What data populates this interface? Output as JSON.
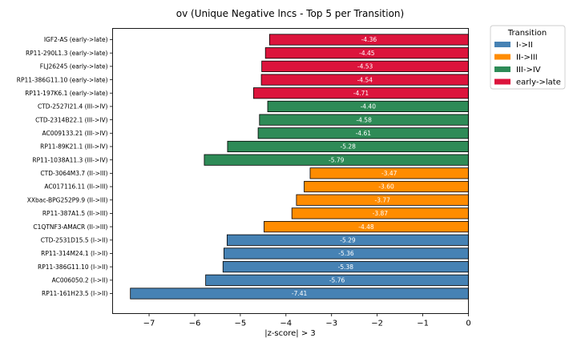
{
  "chart_data": {
    "type": "bar",
    "orientation": "horizontal",
    "title": "ov (Unique Negative lncs - Top 5 per Transition)",
    "xlabel": "|z-score| > 3",
    "ylabel": "",
    "xlim": [
      -7.8,
      0
    ],
    "xticks": [
      -7,
      -6,
      -5,
      -4,
      -3,
      -2,
      -1,
      0
    ],
    "xtick_labels": [
      "−7",
      "−6",
      "−5",
      "−4",
      "−3",
      "−2",
      "−1",
      "0"
    ],
    "grid": false,
    "legend": {
      "title": "Transition",
      "placement": "outside-top-right",
      "entries": [
        {
          "name": "I->II",
          "color": "#4682b4"
        },
        {
          "name": "II->III",
          "color": "#ff8c00"
        },
        {
          "name": "III->IV",
          "color": "#2e8b57"
        },
        {
          "name": "early->late",
          "color": "#dc143c"
        }
      ]
    },
    "bars": [
      {
        "label": "IGF2-AS (early->late)",
        "value": -4.36,
        "value_label": "-4.36",
        "group": "early->late"
      },
      {
        "label": "RP11-290L1.3 (early->late)",
        "value": -4.45,
        "value_label": "-4.45",
        "group": "early->late"
      },
      {
        "label": "FLJ26245 (early->late)",
        "value": -4.53,
        "value_label": "-4.53",
        "group": "early->late"
      },
      {
        "label": "RP11-386G11.10 (early->late)",
        "value": -4.54,
        "value_label": "-4.54",
        "group": "early->late"
      },
      {
        "label": "RP11-197K6.1 (early->late)",
        "value": -4.71,
        "value_label": "-4.71",
        "group": "early->late"
      },
      {
        "label": "CTD-2527I21.4 (III->IV)",
        "value": -4.4,
        "value_label": "-4.40",
        "group": "III->IV"
      },
      {
        "label": "CTD-2314B22.1 (III->IV)",
        "value": -4.58,
        "value_label": "-4.58",
        "group": "III->IV"
      },
      {
        "label": "AC009133.21 (III->IV)",
        "value": -4.61,
        "value_label": "-4.61",
        "group": "III->IV"
      },
      {
        "label": "RP11-89K21.1 (III->IV)",
        "value": -5.28,
        "value_label": "-5.28",
        "group": "III->IV"
      },
      {
        "label": "RP11-1038A11.3 (III->IV)",
        "value": -5.79,
        "value_label": "-5.79",
        "group": "III->IV"
      },
      {
        "label": "CTD-3064M3.7 (II->III)",
        "value": -3.47,
        "value_label": "-3.47",
        "group": "II->III"
      },
      {
        "label": "AC017116.11 (II->III)",
        "value": -3.6,
        "value_label": "-3.60",
        "group": "II->III"
      },
      {
        "label": "XXbac-BPG252P9.9 (II->III)",
        "value": -3.77,
        "value_label": "-3.77",
        "group": "II->III"
      },
      {
        "label": "RP11-387A1.5 (II->III)",
        "value": -3.87,
        "value_label": "-3.87",
        "group": "II->III"
      },
      {
        "label": "C1QTNF3-AMACR (II->III)",
        "value": -4.48,
        "value_label": "-4.48",
        "group": "II->III"
      },
      {
        "label": "CTD-2531D15.5 (I->II)",
        "value": -5.29,
        "value_label": "-5.29",
        "group": "I->II"
      },
      {
        "label": "RP11-314M24.1 (I->II)",
        "value": -5.36,
        "value_label": "-5.36",
        "group": "I->II"
      },
      {
        "label": "RP11-386G11.10 (I->II)",
        "value": -5.38,
        "value_label": "-5.38",
        "group": "I->II"
      },
      {
        "label": "AC006050.2 (I->II)",
        "value": -5.76,
        "value_label": "-5.76",
        "group": "I->II"
      },
      {
        "label": "RP11-161H23.5 (I->II)",
        "value": -7.41,
        "value_label": "-7.41",
        "group": "I->II"
      }
    ]
  }
}
